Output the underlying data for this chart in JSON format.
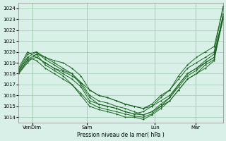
{
  "title": "",
  "xlabel": "Pression niveau de la mer( hPa )",
  "bg_color": "#d8f0e8",
  "grid_color": "#a0c8b0",
  "line_color": "#1a6620",
  "yticks": [
    1014,
    1015,
    1016,
    1017,
    1018,
    1019,
    1020,
    1021,
    1022,
    1023,
    1024
  ],
  "ylim": [
    1013.5,
    1024.5
  ],
  "xlim": [
    0,
    120
  ],
  "xtick_positions": [
    8,
    40,
    80,
    104
  ],
  "xtick_labels": [
    "VenDim",
    "Sam",
    "Lun",
    "Mar"
  ],
  "series": [
    [
      1018.0,
      1019.2,
      1019.5,
      1019.0,
      1018.5,
      1018.0,
      1017.5,
      1016.8,
      1015.5,
      1015.2,
      1015.0,
      1014.8,
      1014.5,
      1014.3,
      1014.2,
      1014.5,
      1015.0,
      1015.5,
      1016.5,
      1017.5,
      1018.0,
      1018.5,
      1019.2,
      1023.5
    ],
    [
      1018.2,
      1019.5,
      1020.0,
      1019.3,
      1018.8,
      1018.3,
      1018.0,
      1017.2,
      1016.0,
      1015.5,
      1015.3,
      1015.0,
      1014.8,
      1014.5,
      1014.2,
      1014.5,
      1015.2,
      1015.8,
      1017.0,
      1018.0,
      1018.5,
      1019.0,
      1019.5,
      1023.2
    ],
    [
      1018.0,
      1019.0,
      1019.8,
      1019.5,
      1019.2,
      1019.0,
      1018.5,
      1017.8,
      1016.5,
      1016.0,
      1015.8,
      1015.5,
      1015.2,
      1015.0,
      1014.8,
      1015.2,
      1016.0,
      1016.5,
      1017.5,
      1018.5,
      1019.0,
      1019.5,
      1020.0,
      1024.2
    ],
    [
      1018.3,
      1019.8,
      1020.0,
      1019.5,
      1019.0,
      1018.5,
      1018.0,
      1017.0,
      1015.8,
      1015.2,
      1015.0,
      1014.8,
      1014.5,
      1014.3,
      1014.5,
      1015.0,
      1015.8,
      1016.5,
      1017.8,
      1018.8,
      1019.5,
      1020.0,
      1020.5,
      1024.0
    ],
    [
      1018.0,
      1019.3,
      1019.8,
      1018.8,
      1018.3,
      1017.8,
      1017.0,
      1016.0,
      1015.0,
      1014.7,
      1014.5,
      1014.3,
      1014.0,
      1014.0,
      1013.8,
      1014.2,
      1014.8,
      1015.5,
      1016.5,
      1017.5,
      1018.0,
      1018.8,
      1019.3,
      1023.0
    ],
    [
      1018.5,
      1020.0,
      1019.5,
      1019.0,
      1018.5,
      1018.2,
      1017.8,
      1017.2,
      1016.5,
      1016.0,
      1015.8,
      1015.5,
      1015.2,
      1015.0,
      1014.8,
      1015.0,
      1015.5,
      1016.0,
      1017.0,
      1018.0,
      1018.5,
      1019.2,
      1019.8,
      1023.3
    ],
    [
      1018.2,
      1019.5,
      1019.2,
      1018.5,
      1018.0,
      1017.5,
      1017.0,
      1016.2,
      1015.3,
      1014.9,
      1014.7,
      1014.5,
      1014.3,
      1014.1,
      1014.0,
      1014.3,
      1015.0,
      1015.8,
      1016.8,
      1017.8,
      1018.3,
      1019.0,
      1019.5,
      1023.1
    ]
  ],
  "marker": "+"
}
